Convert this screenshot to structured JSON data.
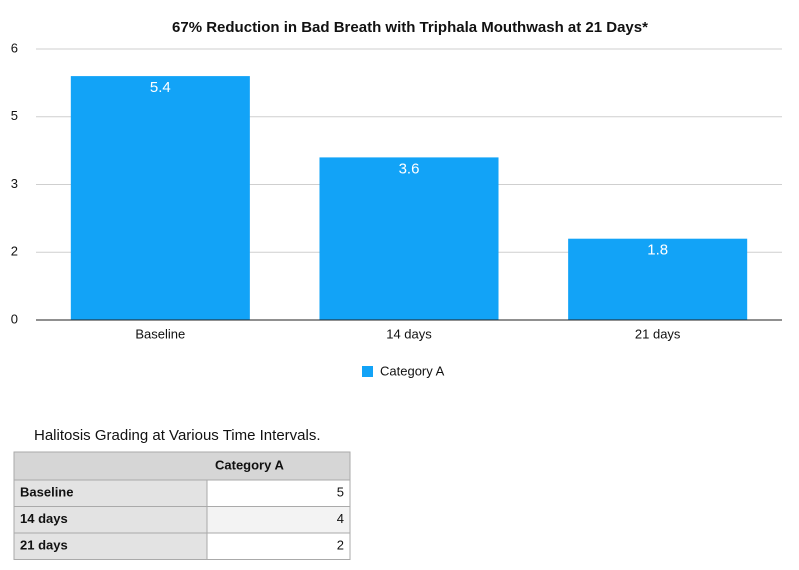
{
  "chart_data": {
    "type": "bar",
    "title": "67% Reduction in Bad Breath with Triphala Mouthwash at 21 Days*",
    "categories": [
      "Baseline",
      "14 days",
      "21 days"
    ],
    "series": [
      {
        "name": "Category A",
        "color": "#12a3f7",
        "values": [
          5.4,
          3.6,
          1.8
        ]
      }
    ],
    "ylim": [
      0,
      6
    ],
    "yticks": [
      0,
      {
        "value": 1.5,
        "label": "2"
      },
      3,
      {
        "value": 4.5,
        "label": "5"
      },
      6
    ],
    "grid": true,
    "legend": "bottom"
  },
  "table": {
    "title": "Halitosis Grading at Various Time Intervals.",
    "header": "Category A",
    "rows": [
      [
        "Baseline",
        5
      ],
      [
        "14 days",
        4
      ],
      [
        "21 days",
        2
      ]
    ]
  }
}
